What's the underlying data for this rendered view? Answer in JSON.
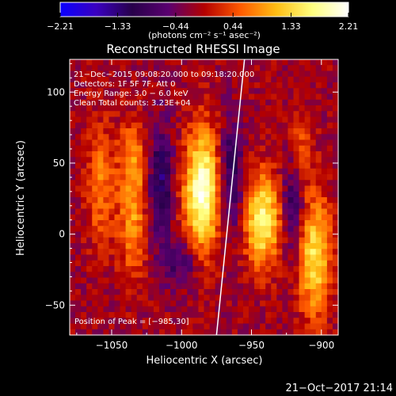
{
  "chart_data": {
    "type": "heatmap",
    "title": "Reconstructed RHESSI Image",
    "xlabel": "Heliocentric X (arcsec)",
    "ylabel": "Heliocentric Y (arcsec)",
    "xlim": [
      -1080,
      -888
    ],
    "ylim": [
      -71,
      123
    ],
    "xticks": [
      -1050,
      -1000,
      -950,
      -900
    ],
    "xtick_labels": [
      "−1050",
      "−1000",
      "−950",
      "−900"
    ],
    "yticks": [
      -50,
      0,
      50,
      100
    ],
    "ytick_labels": [
      "−50",
      "0",
      "50",
      "100"
    ],
    "colorbar": {
      "min": -2.21,
      "max": 2.21,
      "ticks": [
        -2.21,
        -1.33,
        -0.44,
        0.44,
        1.33,
        2.21
      ],
      "tick_labels": [
        "−2.21",
        "−1.33",
        "−0.44",
        "0.44",
        "1.33",
        "2.21"
      ],
      "units": "(photons cm⁻² s⁻¹ asec⁻²)",
      "colormap": [
        "#0a00ff",
        "#3a00c0",
        "#28004a",
        "#5a0070",
        "#b40000",
        "#ff5a00",
        "#ffbe14",
        "#ffff80",
        "#ffffff"
      ]
    },
    "annotations": [
      "21−Dec−2015 09:08:20.000 to 09:18:20.000",
      "Detectors: 1F 5F 7F, Att 0",
      "Energy Range: 3.0 − 6.0 keV",
      "Clean     Total counts: 3.23E+04"
    ],
    "peak_label": "Position of Peak = [−985,30]",
    "peak": [
      -985,
      30
    ],
    "sources": [
      {
        "x": -1058,
        "y": 35,
        "amp": 0.85,
        "sx": 7,
        "sy": 30
      },
      {
        "x": -1035,
        "y": 10,
        "amp": 1.0,
        "sx": 7,
        "sy": 28
      },
      {
        "x": -1035,
        "y": 55,
        "amp": 0.8,
        "sx": 7,
        "sy": 18
      },
      {
        "x": -985,
        "y": 30,
        "amp": 2.21,
        "sx": 9,
        "sy": 30
      },
      {
        "x": -942,
        "y": 10,
        "amp": 1.9,
        "sx": 9,
        "sy": 22
      },
      {
        "x": -905,
        "y": -15,
        "amp": 1.6,
        "sx": 8,
        "sy": 30
      },
      {
        "x": -915,
        "y": 60,
        "amp": 0.6,
        "sx": 6,
        "sy": 20
      },
      {
        "x": -1015,
        "y": 35,
        "amp": -1.1,
        "sx": 6,
        "sy": 28
      },
      {
        "x": -965,
        "y": 40,
        "amp": -1.0,
        "sx": 6,
        "sy": 28
      },
      {
        "x": -920,
        "y": 20,
        "amp": -0.9,
        "sx": 6,
        "sy": 24
      },
      {
        "x": -1000,
        "y": -20,
        "amp": -0.7,
        "sx": 10,
        "sy": 12
      }
    ],
    "limb_line": {
      "x_top": -955,
      "x_bottom": -975
    }
  },
  "footer": {
    "timestamp": "21−Oct−2017 21:14"
  }
}
